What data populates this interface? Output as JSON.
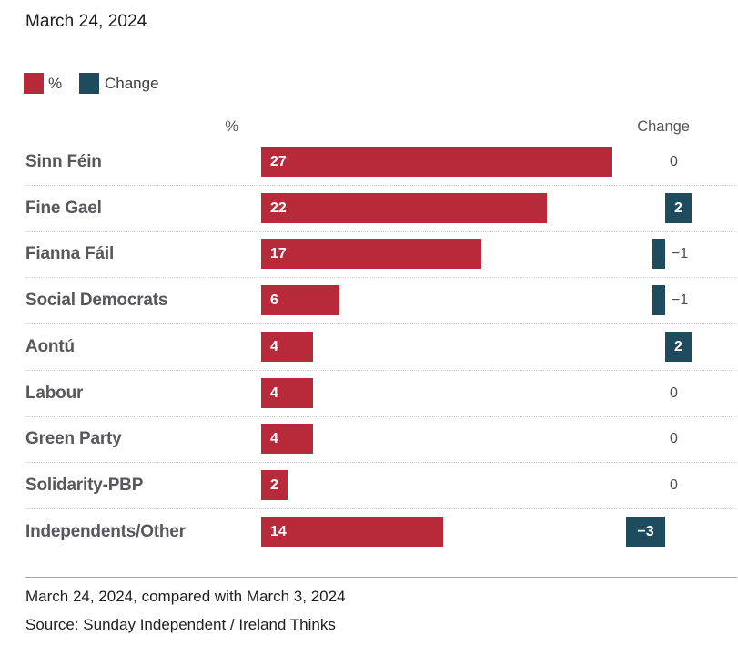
{
  "title": "March 24, 2024",
  "legend": {
    "percent_label": "%",
    "change_label": "Change"
  },
  "columns": {
    "percent_header": "%",
    "change_header": "Change"
  },
  "colors": {
    "percent_bar": "#b8293a",
    "change_bar": "#1e4b5e"
  },
  "chart_data": {
    "type": "bar",
    "orientation": "horizontal",
    "title": "March 24, 2024",
    "categories": [
      "Sinn Féin",
      "Fine Gael",
      "Fianna Fáil",
      "Social Democrats",
      "Aontú",
      "Labour",
      "Green Party",
      "Solidarity-PBP",
      "Independents/Other"
    ],
    "series": [
      {
        "name": "%",
        "values": [
          27,
          22,
          17,
          6,
          4,
          4,
          4,
          2,
          14
        ]
      },
      {
        "name": "Change",
        "values": [
          0,
          2,
          -1,
          -1,
          2,
          0,
          0,
          0,
          -3
        ]
      }
    ],
    "xlabel": "",
    "ylabel": "",
    "xlim": [
      0,
      27
    ],
    "grid": false,
    "legend_position": "top-left"
  },
  "footer": {
    "note": "March 24, 2024, compared with March 3, 2024",
    "source": "Source: Sunday Independent / Ireland Thinks"
  }
}
